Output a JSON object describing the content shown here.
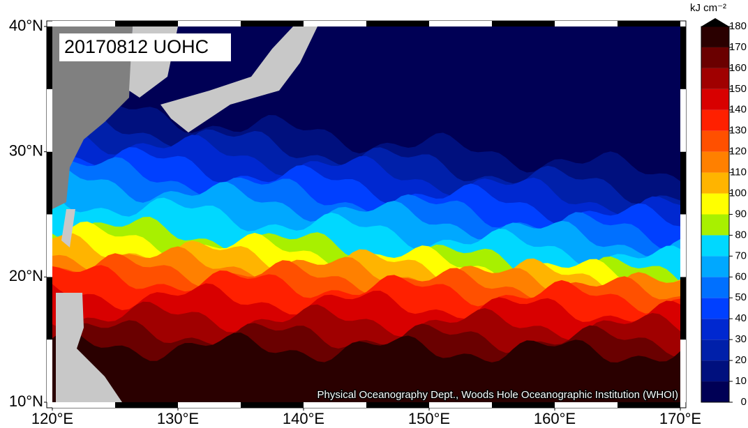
{
  "map": {
    "title": "20170812 UOHC",
    "credit": "Physical Oceanography Dept., Woods Hole Oceanographic Institution (WHOI)",
    "lonlim": [
      120,
      170
    ],
    "latlim": [
      10,
      40
    ],
    "lon_ticks": [
      {
        "value": 120,
        "label": "120°E"
      },
      {
        "value": 130,
        "label": "130°E"
      },
      {
        "value": 140,
        "label": "140°E"
      },
      {
        "value": 150,
        "label": "150°E"
      },
      {
        "value": 160,
        "label": "160°E"
      },
      {
        "value": 170,
        "label": "170°E"
      }
    ],
    "lat_ticks": [
      {
        "value": 10,
        "label": "10°N"
      },
      {
        "value": 20,
        "label": "20°N"
      },
      {
        "value": 30,
        "label": "30°N"
      },
      {
        "value": 40,
        "label": "40°N"
      }
    ]
  },
  "colorbar": {
    "label": "kJ cm⁻²",
    "lim": [
      0,
      180
    ],
    "ticks": [
      0,
      10,
      20,
      30,
      40,
      50,
      60,
      70,
      80,
      90,
      100,
      110,
      120,
      130,
      140,
      150,
      160,
      170,
      180
    ],
    "colors": [
      "#000055",
      "#00107e",
      "#0020aa",
      "#0028d0",
      "#0040ff",
      "#0070ff",
      "#00a8ff",
      "#00d8ff",
      "#a8f000",
      "#ffff00",
      "#ffb400",
      "#ff8000",
      "#ff5000",
      "#ff2000",
      "#d80000",
      "#a00000",
      "#6a0000",
      "#2a0000"
    ]
  }
}
